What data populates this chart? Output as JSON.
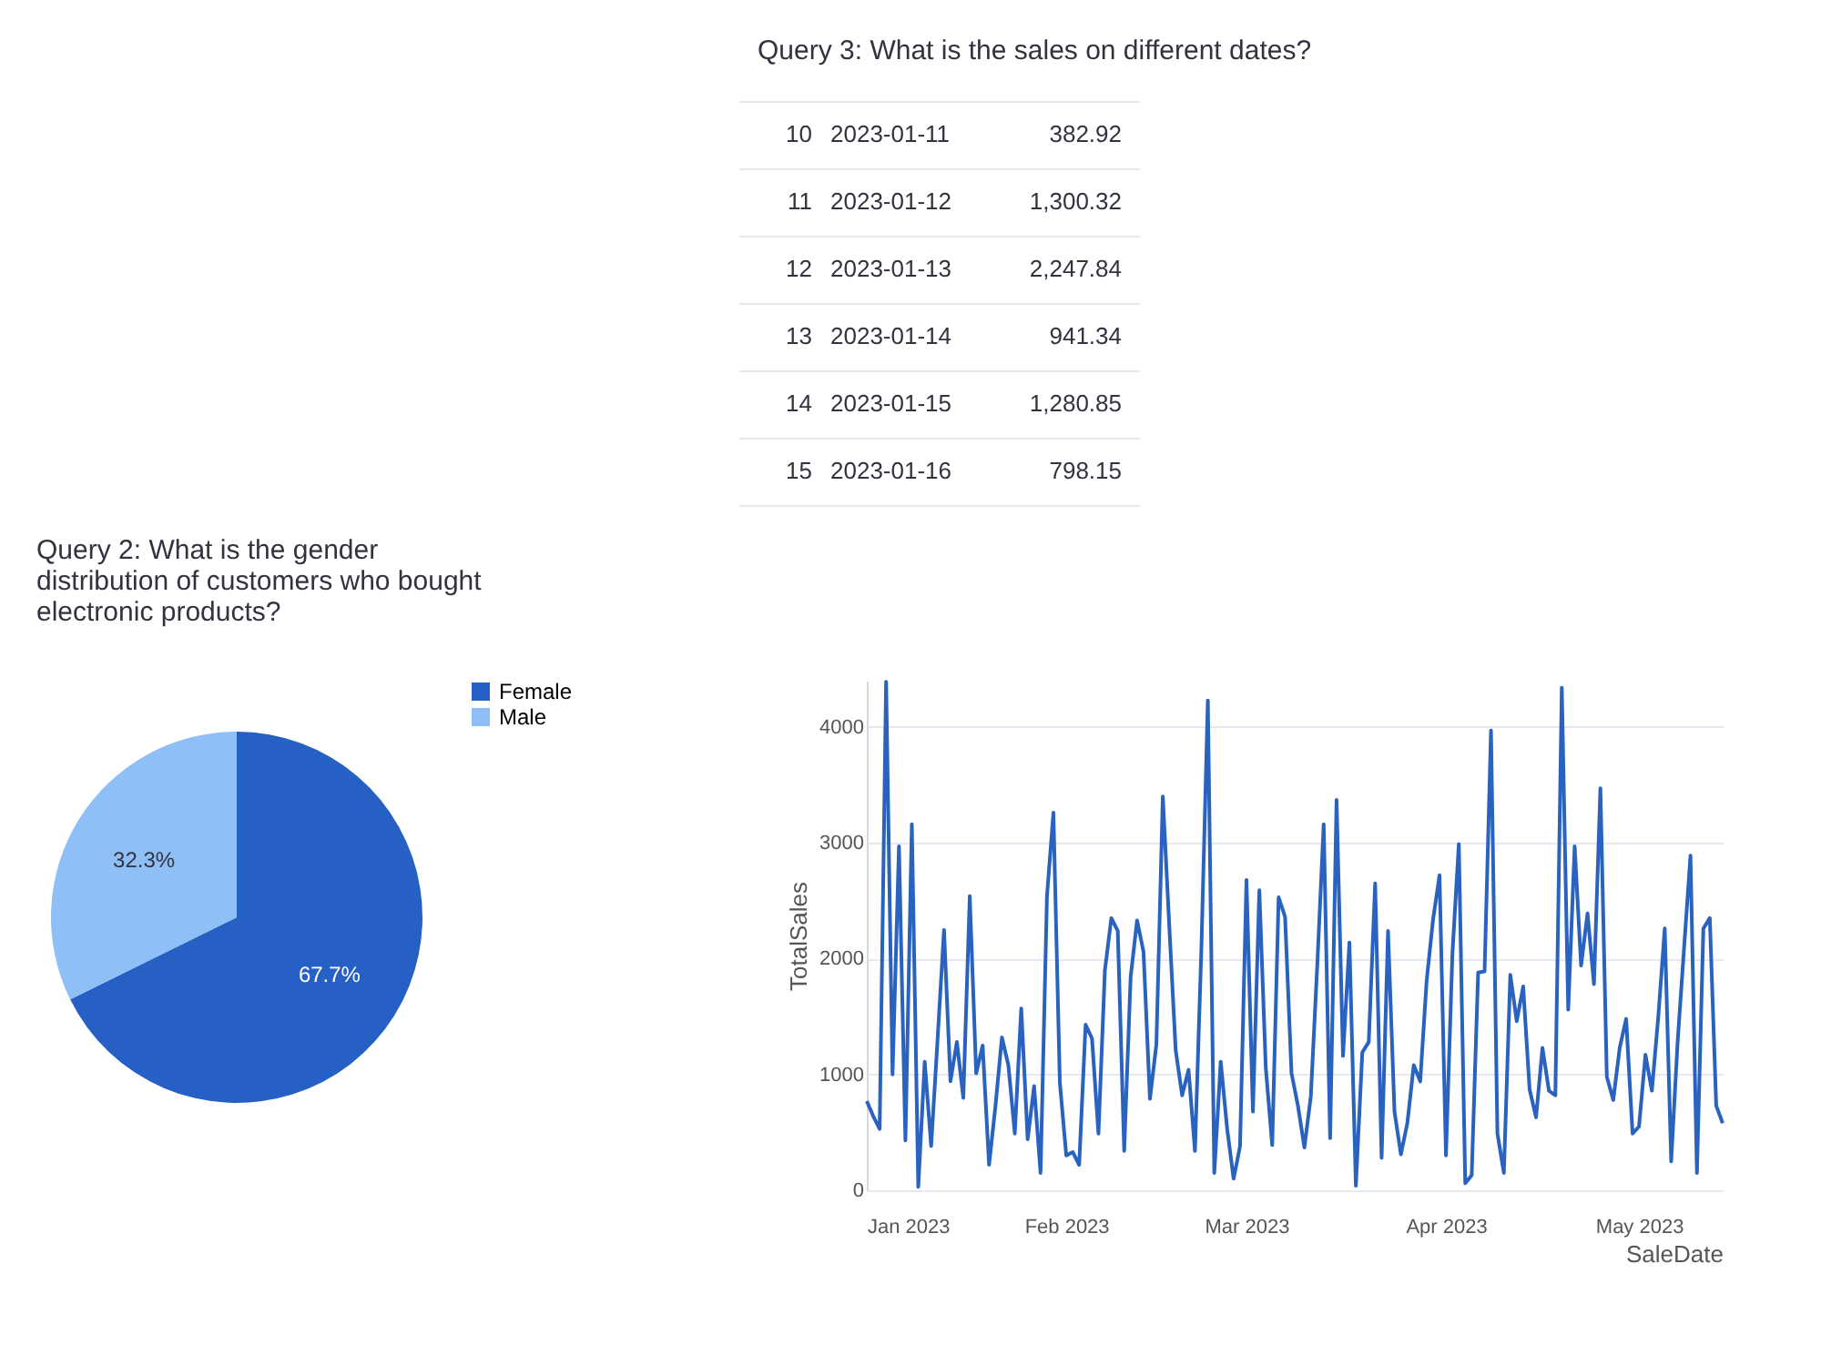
{
  "chart_data": [
    {
      "type": "pie",
      "title": "Query 2: What is the gender distribution of customers who bought electronic products?",
      "categories": [
        "Female",
        "Male"
      ],
      "values": [
        67.7,
        32.3
      ],
      "colors": [
        "#2660c4",
        "#8ec0f7"
      ],
      "value_labels": [
        "67.7%",
        "32.3%"
      ],
      "legend": "top right"
    },
    {
      "type": "line",
      "title": "Query 3: What is the sales on different dates?",
      "annotations": [
        "10",
        "2023-01-11",
        "382.92",
        "11",
        "2023-01-12",
        "1,300.32",
        "12",
        "2023-01-13",
        "2,247.84",
        "13",
        "2023-01-14",
        "941.34",
        "14",
        "2023-01-15",
        "1,280.85",
        "15",
        "2023-01-16",
        "798.15"
      ],
      "xlabel": "SaleDate",
      "ylabel": "TotalSales",
      "grid": "y",
      "xlim": [
        "2023-01-01",
        "2023-05-14"
      ],
      "xticks": [
        {
          "value": "2023-01-01",
          "label": "Jan 2023"
        },
        {
          "value": "2023-02-01",
          "label": "Feb 2023"
        },
        {
          "value": "2023-03-01",
          "label": "Mar 2023"
        },
        {
          "value": "2023-04-01",
          "label": "Apr 2023"
        },
        {
          "value": "2023-05-01",
          "label": "May 2023"
        }
      ],
      "ylim": [
        0,
        4400
      ],
      "yticks": [
        0,
        1000,
        2000,
        3000,
        4000
      ],
      "x": [
        "2023-01-01",
        "2023-01-02",
        "2023-01-03",
        "2023-01-04",
        "2023-01-05",
        "2023-01-06",
        "2023-01-07",
        "2023-01-08",
        "2023-01-09",
        "2023-01-10",
        "2023-01-11",
        "2023-01-12",
        "2023-01-13",
        "2023-01-14",
        "2023-01-15",
        "2023-01-16",
        "2023-01-17",
        "2023-01-18",
        "2023-01-19",
        "2023-01-20",
        "2023-01-21",
        "2023-01-22",
        "2023-01-23",
        "2023-01-24",
        "2023-01-25",
        "2023-01-26",
        "2023-01-27",
        "2023-01-28",
        "2023-01-29",
        "2023-01-30",
        "2023-01-31",
        "2023-02-01",
        "2023-02-02",
        "2023-02-03",
        "2023-02-04",
        "2023-02-05",
        "2023-02-06",
        "2023-02-07",
        "2023-02-08",
        "2023-02-09",
        "2023-02-10",
        "2023-02-11",
        "2023-02-12",
        "2023-02-13",
        "2023-02-14",
        "2023-02-15",
        "2023-02-16",
        "2023-02-17",
        "2023-02-18",
        "2023-02-19",
        "2023-02-20",
        "2023-02-21",
        "2023-02-22",
        "2023-02-23",
        "2023-02-24",
        "2023-02-25",
        "2023-02-26",
        "2023-02-27",
        "2023-02-28",
        "2023-03-01",
        "2023-03-02",
        "2023-03-03",
        "2023-03-04",
        "2023-03-05",
        "2023-03-06",
        "2023-03-07",
        "2023-03-08",
        "2023-03-09",
        "2023-03-10",
        "2023-03-11",
        "2023-03-12",
        "2023-03-13",
        "2023-03-14",
        "2023-03-15",
        "2023-03-16",
        "2023-03-17",
        "2023-03-18",
        "2023-03-19",
        "2023-03-20",
        "2023-03-21",
        "2023-03-22",
        "2023-03-23",
        "2023-03-24",
        "2023-03-25",
        "2023-03-26",
        "2023-03-27",
        "2023-03-28",
        "2023-03-29",
        "2023-03-30",
        "2023-03-31",
        "2023-04-01",
        "2023-04-02",
        "2023-04-03",
        "2023-04-04",
        "2023-04-05",
        "2023-04-06",
        "2023-04-07",
        "2023-04-08",
        "2023-04-09",
        "2023-04-10",
        "2023-04-11",
        "2023-04-12",
        "2023-04-13",
        "2023-04-14",
        "2023-04-15",
        "2023-04-16",
        "2023-04-17",
        "2023-04-18",
        "2023-04-19",
        "2023-04-20",
        "2023-04-21",
        "2023-04-22",
        "2023-04-23",
        "2023-04-24",
        "2023-04-25",
        "2023-04-26",
        "2023-04-27",
        "2023-04-28",
        "2023-04-29",
        "2023-04-30",
        "2023-05-01",
        "2023-05-02",
        "2023-05-03",
        "2023-05-04",
        "2023-05-05",
        "2023-05-06",
        "2023-05-07",
        "2023-05-08",
        "2023-05-09",
        "2023-05-10",
        "2023-05-11",
        "2023-05-12",
        "2023-05-13",
        "2023-05-14"
      ],
      "series": [
        {
          "color": "#2a62c0",
          "values": [
            770,
            640,
            530,
            4390,
            1000,
            2970,
            430,
            3160,
            30,
            1110,
            382.92,
            1300.32,
            2247.84,
            941.34,
            1280.85,
            798.15,
            2540,
            1010,
            1250,
            220,
            730,
            1320,
            1080,
            490,
            1570,
            440,
            900,
            150,
            2540,
            3260,
            930,
            300,
            330,
            220,
            1430,
            1310,
            490,
            1900,
            2350,
            2240,
            340,
            1840,
            2330,
            2060,
            790,
            1260,
            3400,
            2290,
            1210,
            820,
            1040,
            340,
            2100,
            4230,
            150,
            1110,
            530,
            100,
            380,
            2680,
            680,
            2590,
            1060,
            390,
            2530,
            2360,
            1010,
            730,
            370,
            810,
            1940,
            3160,
            450,
            3370,
            1160,
            2140,
            40,
            1190,
            1280,
            2650,
            280,
            2240,
            680,
            310,
            580,
            1080,
            940,
            1810,
            2340,
            2720,
            300,
            2040,
            2990,
            60,
            130,
            1880,
            1890,
            3970,
            490,
            150,
            1860,
            1460,
            1760,
            870,
            630,
            1230,
            860,
            820,
            4340,
            1560,
            2970,
            1940,
            2390,
            1780,
            3470,
            980,
            780,
            1230,
            1480,
            490,
            550,
            1170,
            860,
            1500,
            2260,
            250,
            1280,
            2090,
            2890,
            150,
            2260,
            2350,
            730,
            580
          ]
        }
      ]
    }
  ]
}
